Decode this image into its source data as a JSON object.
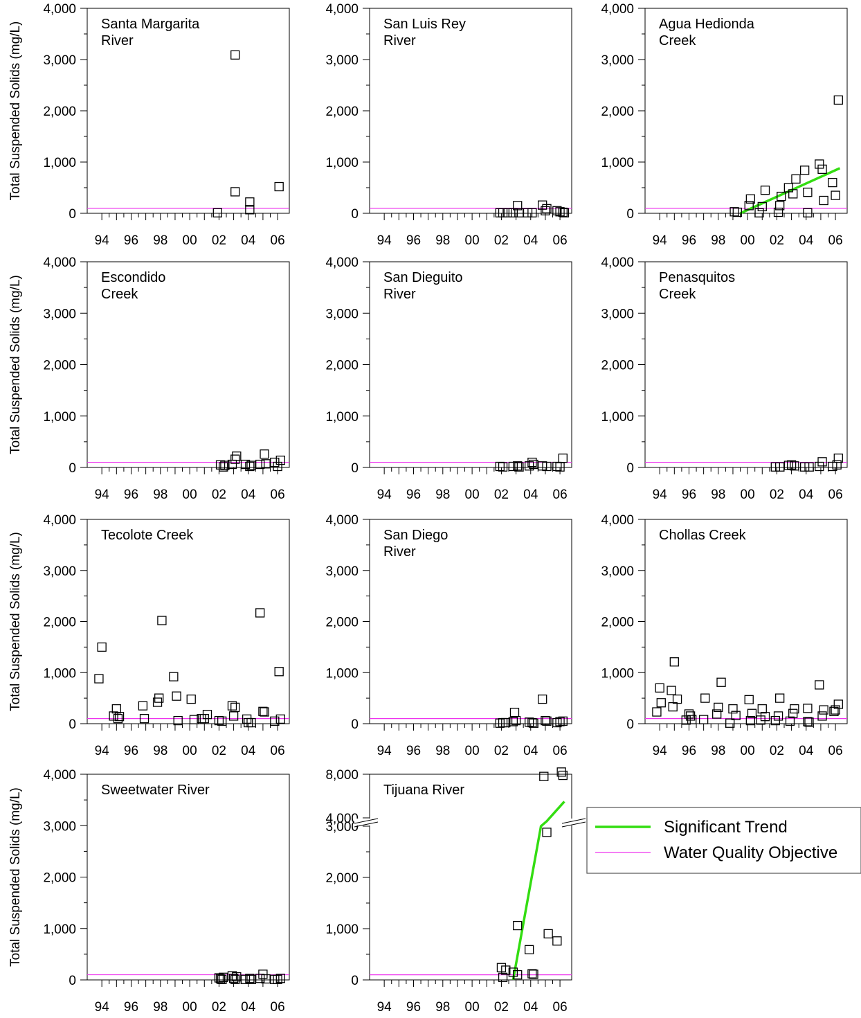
{
  "figure": {
    "y_axis_label": "Total Suspended Solids (mg/L)",
    "x_tick_labels": [
      "94",
      "96",
      "98",
      "00",
      "02",
      "04",
      "06"
    ],
    "y_tick_labels": [
      "0",
      "1,000",
      "2,000",
      "3,000",
      "4,000"
    ],
    "tijuana_upper_ticks": [
      "4,000",
      "8,000"
    ]
  },
  "legend": {
    "trend_label": "Significant Trend",
    "objective_label": "Water Quality Objective",
    "trend_color": "#33dd11",
    "objective_color": "#ee33ee"
  },
  "chart_data": [
    {
      "type": "scatter",
      "title": "Santa Margarita River",
      "title_lines": [
        "Santa Margarita",
        "River"
      ],
      "ylabel": "Total Suspended Solids (mg/L)",
      "xlim": [
        1993,
        2006.8
      ],
      "ylim": [
        0,
        4000
      ],
      "objective": 100,
      "points": [
        [
          2001.9,
          10
        ],
        [
          2003.1,
          3090
        ],
        [
          2003.1,
          420
        ],
        [
          2004.1,
          220
        ],
        [
          2004.1,
          70
        ],
        [
          2006.1,
          520
        ]
      ]
    },
    {
      "type": "scatter",
      "title": "San Luis Rey River",
      "title_lines": [
        "San Luis Rey",
        "River"
      ],
      "ylabel": "Total Suspended Solids (mg/L)",
      "xlim": [
        1993,
        2006.8
      ],
      "ylim": [
        0,
        4000
      ],
      "objective": 100,
      "points": [
        [
          2001.9,
          10
        ],
        [
          2002.1,
          10
        ],
        [
          2002.4,
          10
        ],
        [
          2002.8,
          10
        ],
        [
          2003.1,
          150
        ],
        [
          2003.2,
          10
        ],
        [
          2003.8,
          10
        ],
        [
          2004.1,
          10
        ],
        [
          2004.8,
          160
        ],
        [
          2005.0,
          50
        ],
        [
          2005.1,
          90
        ],
        [
          2005.8,
          50
        ],
        [
          2006.0,
          30
        ],
        [
          2006.2,
          20
        ],
        [
          2006.3,
          10
        ]
      ]
    },
    {
      "type": "scatter",
      "title": "Agua Hedionda Creek",
      "title_lines": [
        "Agua Hedionda",
        "Creek"
      ],
      "ylabel": "Total Suspended Solids (mg/L)",
      "xlim": [
        1993,
        2006.8
      ],
      "ylim": [
        0,
        4000
      ],
      "objective": 100,
      "trend": [
        [
          1999.5,
          0
        ],
        [
          2006.3,
          880
        ]
      ],
      "points": [
        [
          1999.1,
          30
        ],
        [
          1999.3,
          20
        ],
        [
          2000.1,
          150
        ],
        [
          2000.2,
          280
        ],
        [
          2000.8,
          10
        ],
        [
          2001.0,
          130
        ],
        [
          2001.2,
          450
        ],
        [
          2002.1,
          20
        ],
        [
          2002.2,
          150
        ],
        [
          2002.3,
          330
        ],
        [
          2002.8,
          500
        ],
        [
          2003.1,
          380
        ],
        [
          2003.3,
          670
        ],
        [
          2003.9,
          840
        ],
        [
          2004.1,
          10
        ],
        [
          2004.1,
          410
        ],
        [
          2004.9,
          960
        ],
        [
          2005.1,
          860
        ],
        [
          2005.2,
          250
        ],
        [
          2005.8,
          600
        ],
        [
          2006.0,
          350
        ],
        [
          2006.2,
          2210
        ]
      ]
    },
    {
      "type": "scatter",
      "title": "Escondido Creek",
      "title_lines": [
        "Escondido",
        "Creek"
      ],
      "ylabel": "Total Suspended Solids (mg/L)",
      "xlim": [
        1993,
        2006.8
      ],
      "ylim": [
        0,
        4000
      ],
      "objective": 100,
      "points": [
        [
          2002.1,
          50
        ],
        [
          2002.3,
          10
        ],
        [
          2002.4,
          40
        ],
        [
          2002.9,
          60
        ],
        [
          2003.1,
          160
        ],
        [
          2003.2,
          220
        ],
        [
          2003.8,
          60
        ],
        [
          2004.1,
          20
        ],
        [
          2004.2,
          40
        ],
        [
          2004.8,
          60
        ],
        [
          2005.1,
          260
        ],
        [
          2005.2,
          70
        ],
        [
          2005.8,
          100
        ],
        [
          2006.0,
          20
        ],
        [
          2006.2,
          140
        ]
      ]
    },
    {
      "type": "scatter",
      "title": "San Dieguito River",
      "title_lines": [
        "San Dieguito",
        "River"
      ],
      "ylabel": "Total Suspended Solids (mg/L)",
      "xlim": [
        1993,
        2006.8
      ],
      "ylim": [
        0,
        4000
      ],
      "objective": 100,
      "points": [
        [
          2001.9,
          20
        ],
        [
          2002.1,
          10
        ],
        [
          2002.8,
          20
        ],
        [
          2003.1,
          30
        ],
        [
          2003.2,
          10
        ],
        [
          2003.9,
          30
        ],
        [
          2004.1,
          100
        ],
        [
          2004.2,
          60
        ],
        [
          2004.8,
          30
        ],
        [
          2005.1,
          20
        ],
        [
          2005.8,
          20
        ],
        [
          2006.0,
          10
        ],
        [
          2006.2,
          180
        ]
      ]
    },
    {
      "type": "scatter",
      "title": "Penasquitos Creek",
      "title_lines": [
        "Penasquitos",
        "Creek"
      ],
      "ylabel": "Total Suspended Solids (mg/L)",
      "xlim": [
        1993,
        2006.8
      ],
      "ylim": [
        0,
        4000
      ],
      "objective": 100,
      "points": [
        [
          2001.9,
          10
        ],
        [
          2002.2,
          10
        ],
        [
          2002.8,
          40
        ],
        [
          2003.0,
          50
        ],
        [
          2003.2,
          30
        ],
        [
          2003.9,
          10
        ],
        [
          2004.2,
          10
        ],
        [
          2004.9,
          20
        ],
        [
          2005.1,
          110
        ],
        [
          2005.8,
          20
        ],
        [
          2006.1,
          50
        ],
        [
          2006.2,
          180
        ]
      ]
    },
    {
      "type": "scatter",
      "title": "Tecolote Creek",
      "title_lines": [
        "Tecolote Creek"
      ],
      "ylabel": "Total Suspended Solids (mg/L)",
      "xlim": [
        1993,
        2006.8
      ],
      "ylim": [
        0,
        4000
      ],
      "objective": 100,
      "points": [
        [
          1993.8,
          880
        ],
        [
          1994.0,
          1500
        ],
        [
          1994.8,
          150
        ],
        [
          1995.0,
          290
        ],
        [
          1995.1,
          100
        ],
        [
          1995.2,
          140
        ],
        [
          1996.8,
          350
        ],
        [
          1996.9,
          100
        ],
        [
          1997.8,
          420
        ],
        [
          1997.9,
          500
        ],
        [
          1998.1,
          2020
        ],
        [
          1998.9,
          920
        ],
        [
          1999.1,
          540
        ],
        [
          1999.2,
          60
        ],
        [
          2000.1,
          480
        ],
        [
          2000.3,
          80
        ],
        [
          2000.8,
          100
        ],
        [
          2001.0,
          100
        ],
        [
          2001.2,
          180
        ],
        [
          2002.0,
          60
        ],
        [
          2002.2,
          50
        ],
        [
          2002.9,
          350
        ],
        [
          2003.0,
          150
        ],
        [
          2003.1,
          320
        ],
        [
          2003.9,
          90
        ],
        [
          2004.0,
          20
        ],
        [
          2004.2,
          20
        ],
        [
          2004.8,
          2170
        ],
        [
          2005.0,
          240
        ],
        [
          2005.1,
          230
        ],
        [
          2005.8,
          50
        ],
        [
          2006.1,
          1020
        ],
        [
          2006.2,
          90
        ]
      ]
    },
    {
      "type": "scatter",
      "title": "San Diego River",
      "title_lines": [
        "San Diego",
        "River"
      ],
      "ylabel": "Total Suspended Solids (mg/L)",
      "xlim": [
        1993,
        2006.8
      ],
      "ylim": [
        0,
        4000
      ],
      "objective": 100,
      "points": [
        [
          2001.9,
          10
        ],
        [
          2002.1,
          20
        ],
        [
          2002.3,
          20
        ],
        [
          2002.8,
          40
        ],
        [
          2002.9,
          220
        ],
        [
          2003.0,
          60
        ],
        [
          2003.9,
          30
        ],
        [
          2004.1,
          20
        ],
        [
          2004.2,
          10
        ],
        [
          2004.8,
          480
        ],
        [
          2005.0,
          60
        ],
        [
          2005.1,
          50
        ],
        [
          2005.8,
          20
        ],
        [
          2006.0,
          40
        ],
        [
          2006.2,
          50
        ]
      ]
    },
    {
      "type": "scatter",
      "title": "Chollas Creek",
      "title_lines": [
        "Chollas Creek"
      ],
      "ylabel": "Total Suspended Solids (mg/L)",
      "xlim": [
        1993,
        2006.8
      ],
      "ylim": [
        0,
        4000
      ],
      "objective": 100,
      "points": [
        [
          1993.8,
          230
        ],
        [
          1994.0,
          700
        ],
        [
          1994.1,
          410
        ],
        [
          1994.8,
          650
        ],
        [
          1994.9,
          330
        ],
        [
          1995.0,
          1210
        ],
        [
          1995.2,
          480
        ],
        [
          1995.8,
          70
        ],
        [
          1996.0,
          190
        ],
        [
          1996.1,
          150
        ],
        [
          1996.2,
          80
        ],
        [
          1997.0,
          80
        ],
        [
          1997.1,
          500
        ],
        [
          1997.9,
          190
        ],
        [
          1998.0,
          320
        ],
        [
          1998.2,
          810
        ],
        [
          1998.8,
          10
        ],
        [
          1999.0,
          290
        ],
        [
          1999.2,
          160
        ],
        [
          2000.1,
          470
        ],
        [
          2000.2,
          60
        ],
        [
          2000.3,
          200
        ],
        [
          2000.9,
          70
        ],
        [
          2001.0,
          290
        ],
        [
          2001.2,
          140
        ],
        [
          2001.9,
          60
        ],
        [
          2002.1,
          150
        ],
        [
          2002.2,
          500
        ],
        [
          2002.9,
          50
        ],
        [
          2003.1,
          200
        ],
        [
          2003.2,
          290
        ],
        [
          2004.1,
          40
        ],
        [
          2004.1,
          300
        ],
        [
          2004.2,
          30
        ],
        [
          2004.9,
          760
        ],
        [
          2005.1,
          150
        ],
        [
          2005.2,
          270
        ],
        [
          2005.9,
          240
        ],
        [
          2006.0,
          270
        ],
        [
          2006.2,
          380
        ]
      ]
    },
    {
      "type": "scatter",
      "title": "Sweetwater River",
      "title_lines": [
        "Sweetwater River"
      ],
      "ylabel": "Total Suspended Solids (mg/L)",
      "xlim": [
        1993,
        2006.8
      ],
      "ylim": [
        0,
        4000
      ],
      "objective": 100,
      "points": [
        [
          2002.0,
          40
        ],
        [
          2002.1,
          20
        ],
        [
          2002.2,
          10
        ],
        [
          2002.3,
          50
        ],
        [
          2002.9,
          80
        ],
        [
          2003.0,
          30
        ],
        [
          2003.1,
          10
        ],
        [
          2003.2,
          60
        ],
        [
          2003.8,
          10
        ],
        [
          2004.1,
          30
        ],
        [
          2004.2,
          10
        ],
        [
          2004.8,
          30
        ],
        [
          2005.0,
          110
        ],
        [
          2005.2,
          20
        ],
        [
          2005.8,
          10
        ],
        [
          2006.0,
          10
        ],
        [
          2006.2,
          30
        ]
      ]
    },
    {
      "type": "scatter",
      "title": "Tijuana River",
      "title_lines": [
        "Tijuana River"
      ],
      "ylabel": "Total Suspended Solids (mg/L)",
      "xlim": [
        1993,
        2006.8
      ],
      "ylim": [
        0,
        8000
      ],
      "axis_break": [
        3000,
        4000
      ],
      "objective": 100,
      "trend": [
        [
          2002.8,
          0
        ],
        [
          2004.7,
          3000
        ],
        [
          2005.1,
          3600
        ],
        [
          2006.3,
          5500
        ]
      ],
      "points": [
        [
          2002.0,
          240
        ],
        [
          2002.1,
          50
        ],
        [
          2002.3,
          190
        ],
        [
          2002.8,
          150
        ],
        [
          2003.1,
          1060
        ],
        [
          2003.1,
          100
        ],
        [
          2003.9,
          590
        ],
        [
          2004.1,
          120
        ],
        [
          2004.2,
          110
        ],
        [
          2004.9,
          7800
        ],
        [
          2005.1,
          2880
        ],
        [
          2005.2,
          900
        ],
        [
          2005.8,
          760
        ],
        [
          2006.1,
          8200
        ],
        [
          2006.2,
          7900
        ]
      ]
    }
  ]
}
